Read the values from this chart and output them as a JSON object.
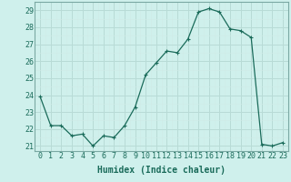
{
  "x": [
    0,
    1,
    2,
    3,
    4,
    5,
    6,
    7,
    8,
    9,
    10,
    11,
    12,
    13,
    14,
    15,
    16,
    17,
    18,
    19,
    20,
    21,
    22,
    23
  ],
  "y": [
    23.9,
    22.2,
    22.2,
    21.6,
    21.7,
    21.0,
    21.6,
    21.5,
    22.2,
    23.3,
    25.2,
    25.9,
    26.6,
    26.5,
    27.3,
    28.9,
    29.1,
    28.9,
    27.9,
    27.8,
    27.4,
    21.1,
    21.0,
    21.2
  ],
  "line_color": "#1a6b5a",
  "marker": "+",
  "markersize": 3.5,
  "linewidth": 0.9,
  "bg_color": "#cff0ec",
  "grid_color_major": "#b8dbd6",
  "grid_color_minor": "#d0ebe7",
  "xlabel": "Humidex (Indice chaleur)",
  "xlabel_fontsize": 7,
  "tick_fontsize": 6,
  "ylim": [
    20.7,
    29.5
  ],
  "yticks": [
    21,
    22,
    23,
    24,
    25,
    26,
    27,
    28,
    29
  ],
  "xlim": [
    -0.5,
    23.5
  ]
}
